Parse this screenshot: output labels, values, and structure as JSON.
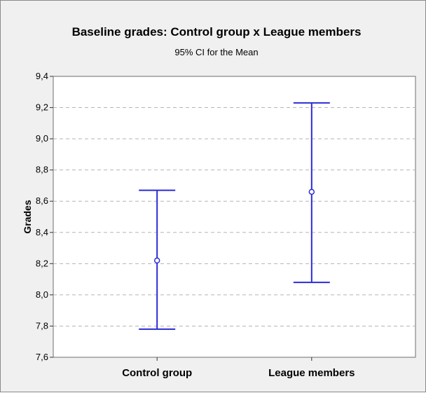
{
  "chart_data": {
    "type": "interval",
    "title": "Baseline grades: Control group x League members",
    "subtitle": "95% CI for the Mean",
    "xlabel": "",
    "ylabel": "Grades",
    "categories": [
      "Control group",
      "League members"
    ],
    "means": [
      8.22,
      8.66
    ],
    "lower": [
      7.78,
      8.08
    ],
    "upper": [
      8.67,
      9.23
    ],
    "ylim": [
      7.6,
      9.4
    ],
    "yticks": [
      7.6,
      7.8,
      8.0,
      8.2,
      8.4,
      8.6,
      8.8,
      9.0,
      9.2,
      9.4
    ],
    "ytick_labels": [
      "7,6",
      "7,8",
      "8,0",
      "8,2",
      "8,4",
      "8,6",
      "8,8",
      "9,0",
      "9,2",
      "9,4"
    ],
    "grid": true,
    "colors": {
      "interval": "#2b2bd6",
      "background": "#f0f0f0",
      "plot_area": "#ffffff",
      "grid": "#b5b5b5"
    }
  }
}
